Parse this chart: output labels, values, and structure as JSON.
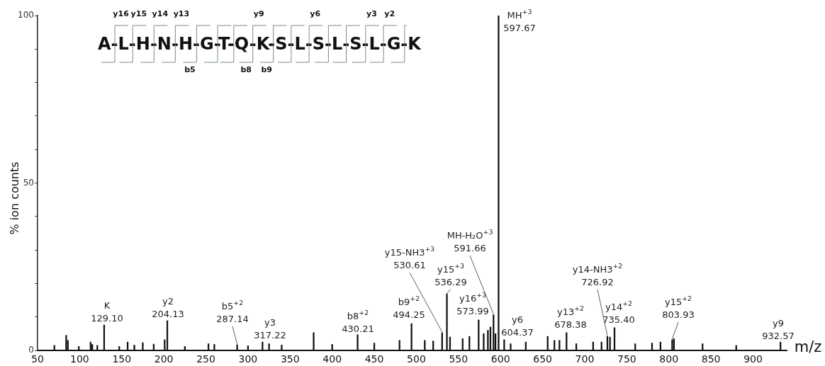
{
  "chart_data": {
    "type": "bar",
    "xlabel": "m/z",
    "ylabel": "% ion counts",
    "color": "#111111",
    "x": [
      70,
      84,
      86,
      99,
      113,
      115,
      121,
      129.1,
      147,
      157,
      165,
      175,
      188,
      201,
      204.13,
      225,
      253,
      260,
      287.14,
      300,
      317.22,
      325,
      340,
      378,
      400,
      430.21,
      450,
      480,
      494.25,
      510,
      520,
      530.61,
      536.29,
      540,
      555,
      563,
      573.99,
      580,
      585,
      588,
      591.66,
      594,
      597.67,
      604.37,
      612,
      630,
      656,
      664,
      670,
      678.38,
      690,
      710,
      720,
      726.92,
      730,
      735.4,
      760,
      780,
      790,
      803.93,
      806,
      840,
      880,
      932.57
    ],
    "values": [
      1.5,
      4.5,
      3,
      1.2,
      2.5,
      1.8,
      1.5,
      7.6,
      1.2,
      2.5,
      1.6,
      2.3,
      1.9,
      3.2,
      8.9,
      1.2,
      2,
      1.8,
      1.7,
      1.4,
      2.5,
      2,
      1.6,
      5.3,
      1.8,
      4.7,
      2.2,
      3,
      8,
      3,
      2.8,
      5.3,
      16.9,
      4,
      3.5,
      4.2,
      9.1,
      5,
      6,
      7,
      10.6,
      5,
      100,
      3.2,
      2,
      2.5,
      4.2,
      3,
      3,
      5.3,
      2,
      2.5,
      2.5,
      4.2,
      4,
      6.8,
      2,
      2.2,
      2.5,
      3.2,
      3.5,
      2,
      1.5,
      2.5
    ],
    "xlim": [
      50,
      940
    ],
    "xticks": [
      50,
      100,
      150,
      200,
      250,
      300,
      350,
      400,
      450,
      500,
      550,
      600,
      650,
      700,
      750,
      800,
      850,
      900
    ],
    "ylim": [
      0,
      100
    ],
    "yticks": [
      0,
      {
        "value": 10,
        "label": null
      },
      {
        "value": 20,
        "label": null
      },
      {
        "value": 30,
        "label": null
      },
      {
        "value": 40,
        "label": null
      },
      50,
      {
        "value": 60,
        "label": null
      },
      {
        "value": 70,
        "label": null
      },
      {
        "value": 80,
        "label": null
      },
      {
        "value": 90,
        "label": null
      },
      100
    ],
    "grid": false,
    "legend": false,
    "annotations": [
      {
        "text": "K\n129.10",
        "x": 129.1,
        "y": 7.6
      },
      {
        "text": "y2\n204.13",
        "x": 204.13,
        "y": 8.9
      },
      {
        "text": "b5$^{+2}$\n287.14",
        "x": 287.14,
        "y": 1.7
      },
      {
        "text": "y3\n317.22",
        "x": 317.22,
        "y": 2.5
      },
      {
        "text": "b8$^{+2}$\n430.21",
        "x": 430.21,
        "y": 4.7
      },
      {
        "text": "b9$^{+2}$\n494.25",
        "x": 494.25,
        "y": 8
      },
      {
        "text": "y15-NH3$^{+3}$\n530.61",
        "x": 530.61,
        "y": 5.3
      },
      {
        "text": "y15$^{+3}$\n536.29",
        "x": 536.29,
        "y": 16.9
      },
      {
        "text": "y16$^{+3}$\n573.99",
        "x": 573.99,
        "y": 9.1
      },
      {
        "text": "MH-H₂O$^{+3}$\n591.66",
        "x": 591.66,
        "y": 10.6
      },
      {
        "text": "MH$^{+3}$\n597.67",
        "x": 597.67,
        "y": 100
      },
      {
        "text": "y6\n604.37",
        "x": 604.37,
        "y": 3.2
      },
      {
        "text": "y13$^{+2}$\n678.38",
        "x": 678.38,
        "y": 5.3
      },
      {
        "text": "y14-NH3$^{+2}$\n726.92",
        "x": 726.92,
        "y": 4.2
      },
      {
        "text": "y14$^{+2}$\n735.40",
        "x": 735.4,
        "y": 6.8
      },
      {
        "text": "y15$^{+2}$\n803.93",
        "x": 803.93,
        "y": 3.2
      },
      {
        "text": "y9\n932.57",
        "x": 932.57,
        "y": 2.5
      },
      "A-L-H-N-H-G-T-Q-K-S-L-S-L-S-L-G-K",
      "y16",
      "y15",
      "y14",
      "y13",
      "y9",
      "y6",
      "y3",
      "y2",
      "b5",
      "b8",
      "b9"
    ]
  }
}
